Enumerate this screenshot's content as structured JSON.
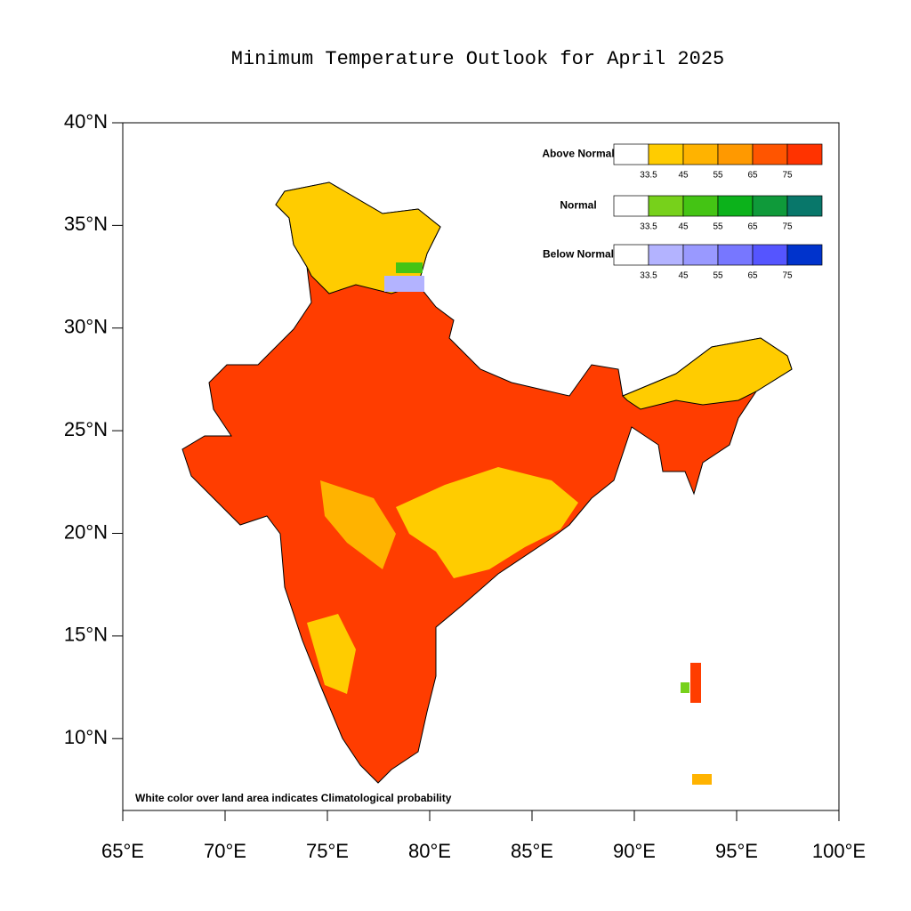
{
  "title": "Minimum Temperature Outlook for April 2025",
  "map": {
    "xlim": [
      65,
      100
    ],
    "ylim": [
      6.5,
      40
    ],
    "xticks": [
      {
        "value": 65,
        "label": "65°E"
      },
      {
        "value": 70,
        "label": "70°E"
      },
      {
        "value": 75,
        "label": "75°E"
      },
      {
        "value": 80,
        "label": "80°E"
      },
      {
        "value": 85,
        "label": "85°E"
      },
      {
        "value": 90,
        "label": "90°E"
      },
      {
        "value": 95,
        "label": "95°E"
      },
      {
        "value": 100,
        "label": "100°E"
      }
    ],
    "yticks": [
      {
        "value": 10,
        "label": "10°N"
      },
      {
        "value": 15,
        "label": "15°N"
      },
      {
        "value": 20,
        "label": "20°N"
      },
      {
        "value": 25,
        "label": "25°N"
      },
      {
        "value": 30,
        "label": "30°N"
      },
      {
        "value": 35,
        "label": "35°N"
      },
      {
        "value": 40,
        "label": "40°N"
      }
    ],
    "footnote": "White color over land area indicates Climatological probability"
  },
  "legend": [
    {
      "name": "Above Normal",
      "colors": [
        "#ffffff",
        "#ffcc00",
        "#ffb300",
        "#ff9900",
        "#ff5500",
        "#ff3300"
      ],
      "ticks": [
        33.5,
        45,
        55,
        65,
        75
      ]
    },
    {
      "name": "Normal",
      "colors": [
        "#ffffff",
        "#77d11b",
        "#44c414",
        "#0cb21b",
        "#0f9a3a",
        "#08776a"
      ],
      "ticks": [
        33.5,
        45,
        55,
        65,
        75
      ]
    },
    {
      "name": "Below Normal",
      "colors": [
        "#ffffff",
        "#b3b3ff",
        "#9999ff",
        "#7777ff",
        "#5555ff",
        "#0033cc"
      ],
      "ticks": [
        33.5,
        45,
        55,
        65,
        75
      ]
    }
  ]
}
